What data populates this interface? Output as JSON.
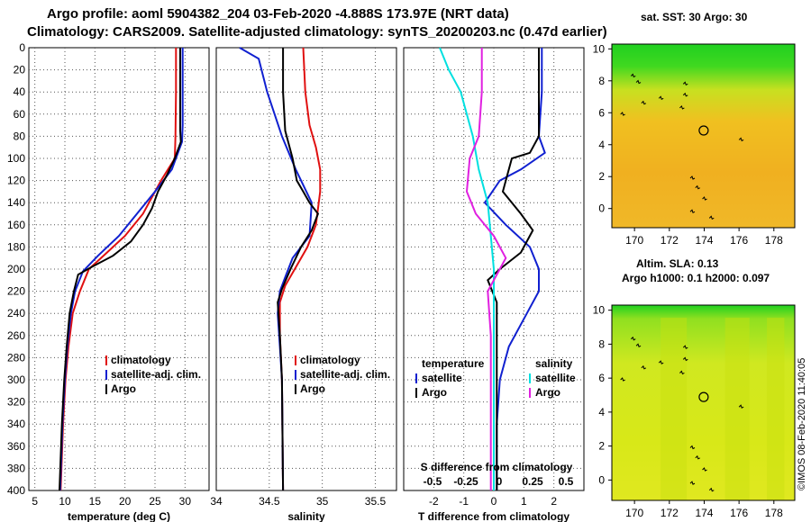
{
  "header": {
    "line1": "Argo profile: aoml 5904382_204 03-Feb-2020 -4.888S 173.97E (NRT data)",
    "line2": "Climatology: CARS2009. Satellite-adjusted climatology: synTS_20200203.nc (0.47d earlier)"
  },
  "footer_stamp": "©IMOS 08-Feb-2020 11:40:05",
  "colors": {
    "climatology": "#e01010",
    "satellite": "#1020d0",
    "argo": "#000000",
    "temp_diff": "#00e0e0",
    "sal_diff": "#e020e0"
  },
  "chart_data": [
    {
      "id": "temperature",
      "type": "line",
      "xlabel": "temperature (deg C)",
      "xlim": [
        4,
        34
      ],
      "xticks": [
        5,
        10,
        15,
        20,
        25,
        30
      ],
      "ylim": [
        0,
        400
      ],
      "yticks": [
        0,
        20,
        40,
        60,
        80,
        100,
        120,
        140,
        160,
        180,
        200,
        220,
        240,
        260,
        280,
        300,
        320,
        340,
        360,
        380,
        400
      ],
      "legend": [
        "climatology",
        "satellite-adj. clim.",
        "Argo"
      ],
      "series": [
        {
          "name": "climatology",
          "color": "#e01010",
          "points": [
            [
              28.5,
              0
            ],
            [
              28.5,
              40
            ],
            [
              28.4,
              80
            ],
            [
              28.3,
              100
            ],
            [
              26,
              120
            ],
            [
              23,
              150
            ],
            [
              20,
              170
            ],
            [
              17,
              185
            ],
            [
              14,
              200
            ],
            [
              12.5,
              220
            ],
            [
              11.3,
              240
            ],
            [
              10.6,
              270
            ],
            [
              10.1,
              300
            ],
            [
              9.7,
              340
            ],
            [
              9.3,
              400
            ]
          ]
        },
        {
          "name": "satellite-adj. clim.",
          "color": "#1020d0",
          "points": [
            [
              29.6,
              0
            ],
            [
              29.6,
              40
            ],
            [
              29.6,
              70
            ],
            [
              29.5,
              85
            ],
            [
              27.8,
              110
            ],
            [
              25,
              130
            ],
            [
              22,
              150
            ],
            [
              19,
              170
            ],
            [
              15.5,
              188
            ],
            [
              13,
              202
            ],
            [
              11.7,
              220
            ],
            [
              11,
              240
            ],
            [
              10.4,
              270
            ],
            [
              10,
              300
            ],
            [
              9.6,
              340
            ],
            [
              9.2,
              400
            ]
          ]
        },
        {
          "name": "Argo",
          "color": "#000000",
          "points": [
            [
              29.2,
              0
            ],
            [
              29.2,
              40
            ],
            [
              29.2,
              75
            ],
            [
              29.3,
              85
            ],
            [
              28.3,
              100
            ],
            [
              27,
              115
            ],
            [
              25.5,
              130
            ],
            [
              24.5,
              145
            ],
            [
              23,
              160
            ],
            [
              21,
              175
            ],
            [
              18,
              188
            ],
            [
              14.5,
              198
            ],
            [
              12.2,
              205
            ],
            [
              11.5,
              220
            ],
            [
              10.8,
              240
            ],
            [
              10.3,
              270
            ],
            [
              9.9,
              300
            ],
            [
              9.5,
              340
            ],
            [
              9.1,
              400
            ]
          ]
        }
      ]
    },
    {
      "id": "salinity",
      "type": "line",
      "xlabel": "salinity",
      "xlim": [
        34,
        35.7
      ],
      "xticks": [
        34,
        34.5,
        35,
        35.5
      ],
      "ylim": [
        0,
        400
      ],
      "legend": [
        "climatology",
        "satellite-adj. clim.",
        "Argo"
      ],
      "series": [
        {
          "name": "climatology",
          "color": "#e01010",
          "points": [
            [
              34.82,
              0
            ],
            [
              34.84,
              40
            ],
            [
              34.88,
              70
            ],
            [
              34.94,
              90
            ],
            [
              34.98,
              110
            ],
            [
              34.98,
              130
            ],
            [
              34.94,
              160
            ],
            [
              34.86,
              180
            ],
            [
              34.74,
              200
            ],
            [
              34.65,
              215
            ],
            [
              34.6,
              230
            ],
            [
              34.6,
              260
            ],
            [
              34.62,
              300
            ],
            [
              34.63,
              400
            ]
          ]
        },
        {
          "name": "satellite-adj. clim.",
          "color": "#1020d0",
          "points": [
            [
              34.22,
              0
            ],
            [
              34.4,
              10
            ],
            [
              34.48,
              40
            ],
            [
              34.55,
              60
            ],
            [
              34.62,
              80
            ],
            [
              34.75,
              110
            ],
            [
              34.9,
              140
            ],
            [
              34.88,
              170
            ],
            [
              34.72,
              190
            ],
            [
              34.66,
              205
            ],
            [
              34.6,
              220
            ],
            [
              34.58,
              240
            ],
            [
              34.6,
              270
            ],
            [
              34.62,
              300
            ],
            [
              34.63,
              400
            ]
          ]
        },
        {
          "name": "Argo",
          "color": "#000000",
          "points": [
            [
              34.63,
              0
            ],
            [
              34.63,
              40
            ],
            [
              34.65,
              75
            ],
            [
              34.72,
              100
            ],
            [
              34.76,
              120
            ],
            [
              34.82,
              130
            ],
            [
              34.88,
              140
            ],
            [
              34.96,
              150
            ],
            [
              34.9,
              165
            ],
            [
              34.8,
              180
            ],
            [
              34.7,
              200
            ],
            [
              34.62,
              218
            ],
            [
              34.58,
              230
            ],
            [
              34.6,
              260
            ],
            [
              34.62,
              300
            ],
            [
              34.63,
              400
            ]
          ]
        }
      ]
    },
    {
      "id": "difference",
      "type": "line",
      "xlabel": "T difference from climatology",
      "xlabel_top": "S difference from climatology",
      "xlim": [
        -3,
        3
      ],
      "xticks": [
        -2,
        -1,
        0,
        1,
        2
      ],
      "xticks_s": [
        -0.5,
        -0.25,
        0,
        0.25,
        0.5
      ],
      "ylim": [
        0,
        400
      ],
      "legend_left_title": "temperature",
      "legend_right_title": "salinity",
      "legend_left": [
        "satellite",
        "Argo"
      ],
      "legend_right": [
        "satellite",
        "Argo"
      ],
      "series": [
        {
          "name": "satellite temperature",
          "color": "#1020d0",
          "points": [
            [
              1.6,
              0
            ],
            [
              1.6,
              40
            ],
            [
              1.5,
              80
            ],
            [
              1.7,
              95
            ],
            [
              0.9,
              110
            ],
            [
              0.2,
              120
            ],
            [
              -0.3,
              140
            ],
            [
              0.4,
              160
            ],
            [
              1.2,
              180
            ],
            [
              1.5,
              200
            ],
            [
              1.5,
              220
            ],
            [
              1.1,
              240
            ],
            [
              0.5,
              270
            ],
            [
              0.2,
              300
            ],
            [
              0.1,
              340
            ],
            [
              0.1,
              400
            ]
          ]
        },
        {
          "name": "Argo temperature",
          "color": "#000000",
          "points": [
            [
              1.5,
              0
            ],
            [
              1.5,
              40
            ],
            [
              1.5,
              80
            ],
            [
              1.2,
              95
            ],
            [
              0.6,
              100
            ],
            [
              0.3,
              130
            ],
            [
              0.9,
              150
            ],
            [
              1.3,
              165
            ],
            [
              0.9,
              185
            ],
            [
              0.2,
              200
            ],
            [
              -0.2,
              210
            ],
            [
              0.1,
              230
            ],
            [
              0.1,
              300
            ],
            [
              0.1,
              400
            ]
          ]
        },
        {
          "name": "satellite salinity",
          "color": "#00e0e0",
          "points": [
            [
              -1.8,
              0
            ],
            [
              -1.5,
              20
            ],
            [
              -1.1,
              40
            ],
            [
              -0.7,
              80
            ],
            [
              -0.5,
              110
            ],
            [
              -0.2,
              140
            ],
            [
              -0.1,
              170
            ],
            [
              0,
              200
            ],
            [
              0,
              400
            ]
          ]
        },
        {
          "name": "Argo salinity",
          "color": "#e020e0",
          "points": [
            [
              -0.4,
              0
            ],
            [
              -0.4,
              40
            ],
            [
              -0.5,
              80
            ],
            [
              -0.8,
              100
            ],
            [
              -0.9,
              130
            ],
            [
              -0.6,
              150
            ],
            [
              0,
              170
            ],
            [
              0.4,
              190
            ],
            [
              -0.2,
              220
            ],
            [
              -0.1,
              260
            ],
            [
              -0.1,
              300
            ],
            [
              -0.1,
              400
            ]
          ]
        }
      ]
    },
    {
      "id": "sst_map",
      "type": "heatmap",
      "title": "sat. SST: 30 Argo: 30",
      "xticks": [
        170,
        172,
        174,
        176,
        178
      ],
      "yticks": [
        0,
        2,
        4,
        6,
        8,
        10
      ],
      "xlim": [
        168.7,
        179.2
      ],
      "ylim": [
        -1.2,
        10.3
      ],
      "float": [
        173.97,
        4.888
      ]
    },
    {
      "id": "sla_map",
      "type": "heatmap",
      "title": "Altim. SLA: 0.13",
      "subtitle": "Argo h1000: 0.1 h2000: 0.097",
      "xticks": [
        170,
        172,
        174,
        176,
        178
      ],
      "yticks": [
        0,
        2,
        4,
        6,
        8,
        10
      ],
      "xlim": [
        168.7,
        179.2
      ],
      "ylim": [
        -1.2,
        10.3
      ],
      "float": [
        173.97,
        4.888
      ]
    }
  ]
}
